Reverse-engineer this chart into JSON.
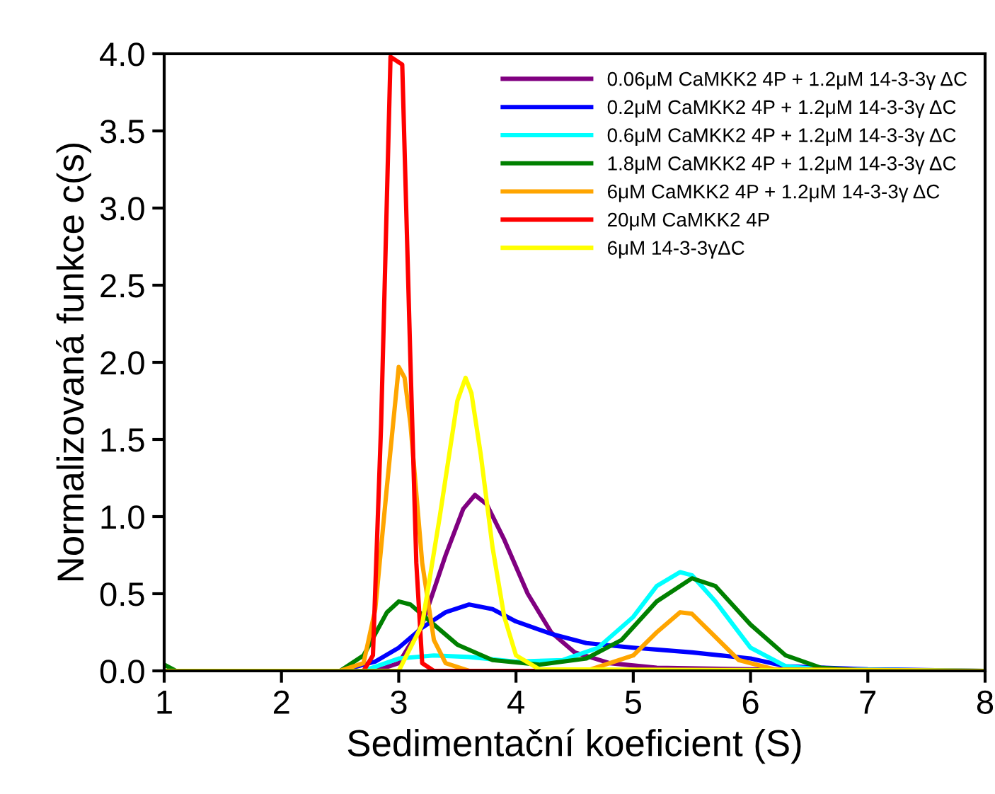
{
  "chart_data": {
    "type": "line",
    "xlabel": "Sedimentační koeficient (S)",
    "ylabel": "Normalizovaná funkce c(s)",
    "xlim": [
      1,
      8
    ],
    "xticks": [
      1,
      2,
      3,
      4,
      5,
      6,
      7,
      8
    ],
    "ylim": [
      0,
      4.0
    ],
    "yticks": [
      {
        "value": 0,
        "label": "0.0"
      },
      {
        "value": 0.5,
        "label": "0.5"
      },
      {
        "value": 1,
        "label": "1.0"
      },
      {
        "value": 1.5,
        "label": "1.5"
      },
      {
        "value": 2,
        "label": "2.0"
      },
      {
        "value": 2.5,
        "label": "2.5"
      },
      {
        "value": 3,
        "label": "3.0"
      },
      {
        "value": 3.5,
        "label": "3.5"
      },
      {
        "value": 4,
        "label": "4.0"
      }
    ],
    "grid": false,
    "legend": "top right",
    "series": [
      {
        "name": "0.06μM CaMKK2 4P + 1.2μM 14-3-3γ ΔC",
        "color": "#800080",
        "x": [
          1,
          2.8,
          3.0,
          3.2,
          3.4,
          3.55,
          3.65,
          3.75,
          3.9,
          4.1,
          4.3,
          4.5,
          4.8,
          5.2,
          6,
          8
        ],
        "values": [
          0,
          0,
          0.05,
          0.3,
          0.75,
          1.05,
          1.14,
          1.08,
          0.85,
          0.5,
          0.25,
          0.12,
          0.05,
          0.02,
          0.01,
          0
        ]
      },
      {
        "name": "0.2μM CaMKK2 4P + 1.2μM 14-3-3γ ΔC",
        "color": "#0000ff",
        "x": [
          1,
          2.5,
          2.8,
          3.0,
          3.2,
          3.4,
          3.6,
          3.8,
          4.0,
          4.3,
          4.6,
          5.0,
          5.5,
          6.0,
          6.3,
          7,
          8
        ],
        "values": [
          0,
          0,
          0.06,
          0.15,
          0.28,
          0.38,
          0.43,
          0.4,
          0.32,
          0.24,
          0.18,
          0.15,
          0.12,
          0.08,
          0.03,
          0.01,
          0
        ]
      },
      {
        "name": "0.6μM CaMKK2 4P + 1.2μM 14-3-3γ ΔC",
        "color": "#00ffff",
        "x": [
          1,
          2.7,
          3.0,
          3.3,
          3.6,
          4.0,
          4.4,
          4.7,
          5.0,
          5.2,
          5.4,
          5.5,
          5.7,
          6.0,
          6.3,
          6.6,
          8
        ],
        "values": [
          0,
          0,
          0.08,
          0.1,
          0.09,
          0.06,
          0.07,
          0.15,
          0.35,
          0.55,
          0.64,
          0.62,
          0.45,
          0.15,
          0.03,
          0.01,
          0
        ]
      },
      {
        "name": "1.8μM CaMKK2 4P + 1.2μM 14-3-3γ ΔC",
        "color": "#008000",
        "x": [
          1,
          1.1,
          2.5,
          2.7,
          2.9,
          3.0,
          3.1,
          3.3,
          3.5,
          3.8,
          4.2,
          4.6,
          4.9,
          5.2,
          5.5,
          5.7,
          6.0,
          6.3,
          6.6,
          7,
          8
        ],
        "values": [
          0.04,
          0,
          0,
          0.1,
          0.38,
          0.45,
          0.43,
          0.3,
          0.17,
          0.07,
          0.04,
          0.08,
          0.2,
          0.45,
          0.6,
          0.55,
          0.3,
          0.1,
          0.02,
          0,
          0
        ]
      },
      {
        "name": "6μM CaMKK2 4P + 1.2μM 14-3-3γ ΔC",
        "color": "#ffa500",
        "x": [
          1,
          2.5,
          2.7,
          2.8,
          2.9,
          3.0,
          3.05,
          3.1,
          3.2,
          3.3,
          3.4,
          3.6,
          4.6,
          5.0,
          5.2,
          5.4,
          5.5,
          5.7,
          5.9,
          6.2,
          8
        ],
        "values": [
          0,
          0,
          0.05,
          0.4,
          1.2,
          1.97,
          1.9,
          1.6,
          0.7,
          0.2,
          0.05,
          0,
          0,
          0.1,
          0.25,
          0.38,
          0.37,
          0.22,
          0.07,
          0.01,
          0
        ]
      },
      {
        "name": "20μM CaMKK2 4P",
        "color": "#ff0000",
        "x": [
          1,
          2.7,
          2.78,
          2.85,
          2.93,
          3.03,
          3.1,
          3.15,
          3.2,
          3.3,
          8
        ],
        "values": [
          0,
          0,
          0.1,
          1.6,
          3.98,
          3.93,
          2.0,
          0.7,
          0.05,
          0,
          0
        ]
      },
      {
        "name": "6μM 14-3-3γΔC",
        "color": "#ffff00",
        "x": [
          1,
          3.0,
          3.2,
          3.35,
          3.5,
          3.57,
          3.62,
          3.7,
          3.8,
          3.9,
          4.0,
          4.2,
          8
        ],
        "values": [
          0,
          0,
          0.3,
          1.0,
          1.75,
          1.9,
          1.8,
          1.4,
          0.8,
          0.35,
          0.1,
          0.01,
          0
        ]
      }
    ]
  }
}
